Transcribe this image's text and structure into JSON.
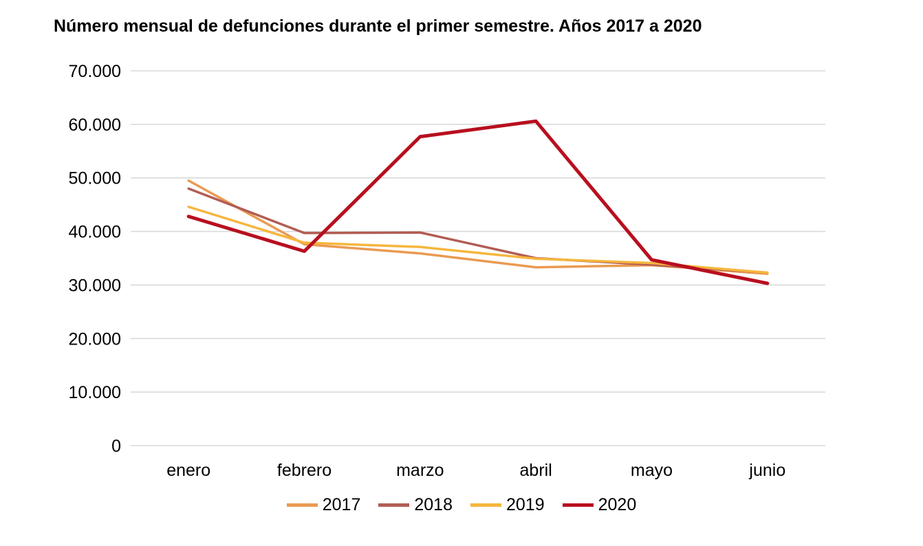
{
  "page": {
    "background": "#ffffff"
  },
  "chart_data": {
    "type": "line",
    "title": "Número mensual de defunciones durante el primer semestre. Años 2017 a 2020",
    "xlabel": "",
    "ylabel": "",
    "categories": [
      "enero",
      "febrero",
      "marzo",
      "abril",
      "mayo",
      "junio"
    ],
    "series": [
      {
        "name": "2017",
        "color": "#EA9A52",
        "line_width": 3.5,
        "values": [
          49500,
          37600,
          35900,
          33300,
          33700,
          32100
        ]
      },
      {
        "name": "2018",
        "color": "#B25D54",
        "line_width": 3.5,
        "values": [
          48000,
          39700,
          39800,
          35000,
          33800,
          32300
        ]
      },
      {
        "name": "2019",
        "color": "#F6B63D",
        "line_width": 3.5,
        "values": [
          44600,
          37900,
          37100,
          34900,
          34100,
          32300
        ]
      },
      {
        "name": "2020",
        "color": "#B80F1F",
        "line_width": 5,
        "values": [
          42800,
          36300,
          57700,
          60600,
          34700,
          30300
        ]
      }
    ],
    "ylim": [
      0,
      70000
    ],
    "yticks": [
      {
        "value": 0,
        "label": "0"
      },
      {
        "value": 10000,
        "label": "10.000"
      },
      {
        "value": 20000,
        "label": "20.000"
      },
      {
        "value": 30000,
        "label": "30.000"
      },
      {
        "value": 40000,
        "label": "40.000"
      },
      {
        "value": 50000,
        "label": "50.000"
      },
      {
        "value": 60000,
        "label": "60.000"
      },
      {
        "value": 70000,
        "label": "70.000"
      }
    ],
    "grid": true,
    "grid_color": "#D9D9D9",
    "legend_position": "bottom"
  }
}
